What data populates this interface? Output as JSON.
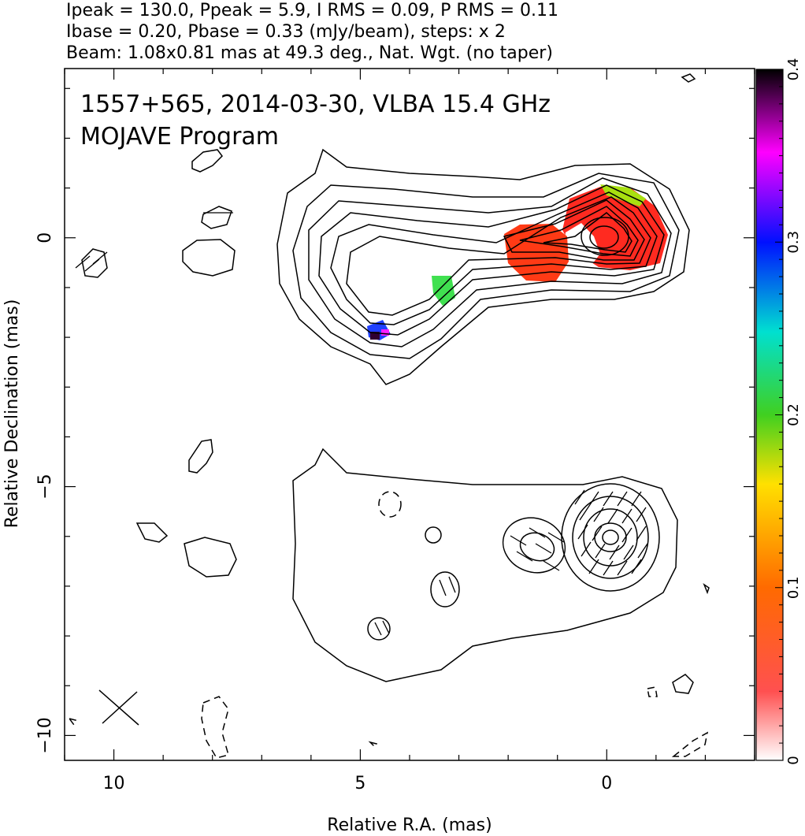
{
  "header": {
    "line1": "Ipeak = 130.0, Ppeak = 5.9, I RMS = 0.09, P RMS = 0.11",
    "line2": "Ibase = 0.20, Pbase = 0.33 (mJy/beam), steps: x 2",
    "line3": "Beam: 1.08x0.81 mas at 49.3 deg., Nat. Wgt. (no taper)"
  },
  "chart_data": {
    "type": "contour",
    "annotation": {
      "line1": "1557+565, 2014-03-30, VLBA 15.4 GHz",
      "line2": "MOJAVE Program"
    },
    "xlabel": "Relative R.A. (mas)",
    "ylabel": "Relative Declination (mas)",
    "xlim": [
      11.0,
      -3.0
    ],
    "ylim": [
      -10.5,
      3.4
    ],
    "x_ticks": [
      10,
      5,
      0
    ],
    "y_ticks": [
      0,
      -5,
      -10
    ],
    "colorbar": {
      "range": [
        0,
        0.4
      ],
      "ticks": [
        "0",
        "0.1",
        "0.2",
        "0.3",
        "0.4"
      ],
      "colormap": [
        "#ffffff",
        "#ff3030",
        "#ff9000",
        "#ffff00",
        "#20d020",
        "#00e0e0",
        "#0000ff",
        "#ff00ff",
        "#000000"
      ]
    },
    "beam": {
      "major_mas": 1.08,
      "minor_mas": 0.81,
      "pa_deg": 49.3,
      "center": [
        10.0,
        -9.4
      ]
    },
    "upper_panel": {
      "description": "Stokes I contours with fractional polarization color",
      "core_position": [
        0.0,
        0.0
      ]
    },
    "lower_panel": {
      "description": "Polarized intensity contours with EVPA ticks",
      "core_position": [
        0.0,
        -6.0
      ]
    }
  }
}
